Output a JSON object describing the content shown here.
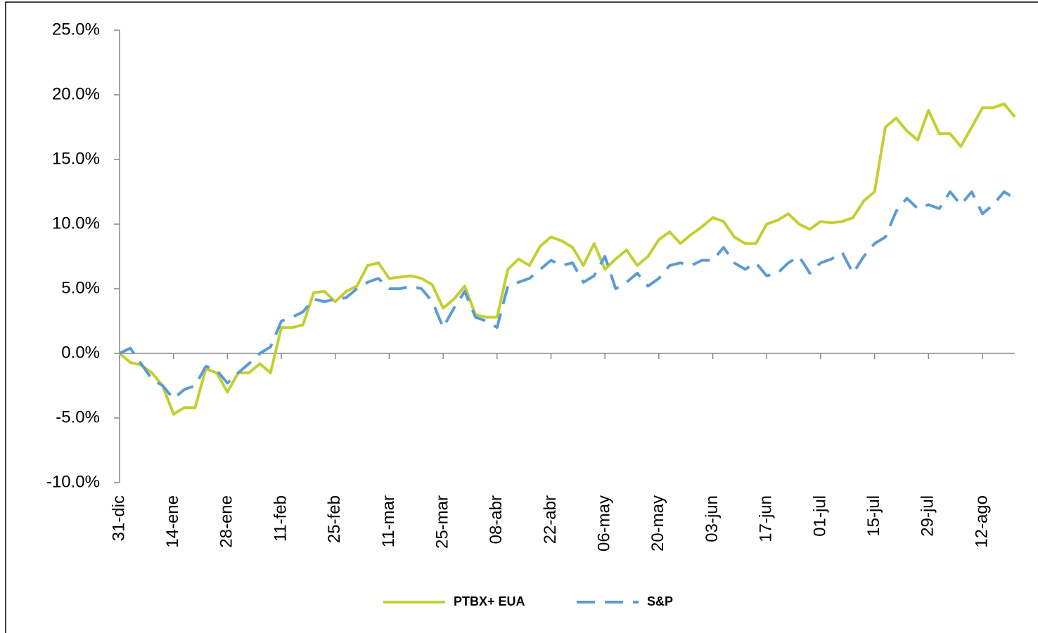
{
  "chart_data": {
    "type": "line",
    "categories": [
      "31-dic",
      null,
      null,
      null,
      null,
      "14-ene",
      null,
      null,
      null,
      null,
      "28-ene",
      null,
      null,
      null,
      null,
      "11-feb",
      null,
      null,
      null,
      null,
      "25-feb",
      null,
      null,
      null,
      null,
      "11-mar",
      null,
      null,
      null,
      null,
      "25-mar",
      null,
      null,
      null,
      null,
      "08-abr",
      null,
      null,
      null,
      null,
      "22-abr",
      null,
      null,
      null,
      null,
      "06-may",
      null,
      null,
      null,
      null,
      "20-may",
      null,
      null,
      null,
      null,
      "03-jun",
      null,
      null,
      null,
      null,
      "17-jun",
      null,
      null,
      null,
      null,
      "01-jul",
      null,
      null,
      null,
      null,
      "15-jul",
      null,
      null,
      null,
      null,
      "29-jul",
      null,
      null,
      null,
      null,
      "12-ago",
      null,
      null,
      null
    ],
    "series": [
      {
        "name": "PTBX+ EUA",
        "color": "#c3cf2f",
        "dashed": false,
        "values": [
          0,
          -0.7,
          -0.9,
          -1.5,
          -2.5,
          -4.7,
          -4.2,
          -4.2,
          -1.2,
          -1.5,
          -3.0,
          -1.5,
          -1.5,
          -0.8,
          -1.5,
          2.0,
          2.0,
          2.2,
          4.7,
          4.8,
          4.0,
          4.8,
          5.2,
          6.8,
          7.0,
          5.8,
          5.9,
          6.0,
          5.8,
          5.3,
          3.5,
          4.2,
          5.2,
          3.0,
          2.8,
          2.8,
          6.5,
          7.3,
          6.8,
          8.3,
          9.0,
          8.7,
          8.2,
          6.8,
          8.5,
          6.5,
          7.3,
          8.0,
          6.8,
          7.5,
          8.8,
          9.4,
          8.5,
          9.2,
          9.8,
          10.5,
          10.2,
          9.0,
          8.5,
          8.5,
          10.0,
          10.3,
          10.8,
          10.0,
          9.6,
          10.2,
          10.1,
          10.2,
          10.5,
          11.8,
          12.5,
          17.5,
          18.2,
          17.2,
          16.5,
          18.8,
          17.0,
          17.0,
          16.0,
          17.5,
          19.0,
          19.0,
          19.3,
          18.3
        ]
      },
      {
        "name": "S&P",
        "color": "#5b9bd5",
        "dashed": true,
        "values": [
          0,
          0.4,
          -0.8,
          -2.0,
          -2.5,
          -3.5,
          -2.8,
          -2.5,
          -1.0,
          -1.3,
          -2.3,
          -1.5,
          -0.8,
          0.0,
          0.5,
          2.5,
          2.8,
          3.2,
          4.2,
          4.0,
          4.2,
          4.3,
          5.0,
          5.5,
          5.8,
          5.0,
          5.0,
          5.2,
          5.0,
          4.0,
          2.0,
          3.5,
          4.8,
          2.8,
          2.5,
          2.0,
          5.2,
          5.5,
          5.8,
          6.5,
          7.2,
          6.8,
          7.0,
          5.5,
          6.0,
          7.5,
          5.0,
          5.5,
          6.2,
          5.2,
          5.8,
          6.8,
          7.0,
          6.8,
          7.2,
          7.2,
          8.2,
          7.0,
          6.5,
          7.0,
          6.0,
          6.2,
          7.0,
          7.5,
          6.2,
          7.0,
          7.3,
          7.8,
          6.2,
          7.5,
          8.5,
          9.0,
          11.0,
          12.0,
          11.2,
          11.5,
          11.2,
          12.5,
          11.5,
          12.5,
          10.8,
          11.5,
          12.5,
          12.0
        ]
      }
    ],
    "ylim": [
      -10,
      25
    ],
    "yticks": [
      {
        "value": -10,
        "label": "-10.0%"
      },
      {
        "value": -5,
        "label": "-5.0%"
      },
      {
        "value": 0,
        "label": "0.0%"
      },
      {
        "value": 5,
        "label": "5.0%"
      },
      {
        "value": 10,
        "label": "10.0%"
      },
      {
        "value": 15,
        "label": "15.0%"
      },
      {
        "value": 20,
        "label": "20.0%"
      },
      {
        "value": 25,
        "label": "25.0%"
      }
    ],
    "legend": "bottom"
  }
}
